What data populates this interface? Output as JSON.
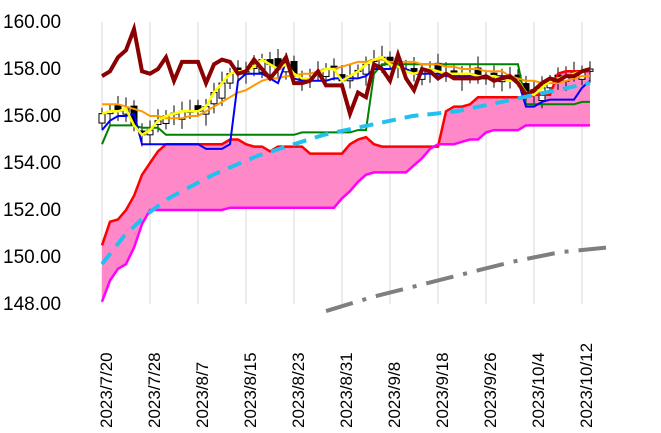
{
  "chart_data": {
    "type": "line",
    "title": "",
    "xlabel": "",
    "ylabel": "",
    "ylim": [
      148,
      160
    ],
    "y_ticks": [
      "160.00",
      "158.00",
      "156.00",
      "154.00",
      "152.00",
      "150.00",
      "148.00"
    ],
    "x_ticks": [
      "2023/7/20",
      "2023/7/28",
      "2023/8/7",
      "2023/8/15",
      "2023/8/23",
      "2023/8/31",
      "2023/9/8",
      "2023/9/18",
      "2023/9/26",
      "2023/10/4",
      "2023/10/12"
    ],
    "grid": "vertical lines at each x tick",
    "candles_count": 62,
    "series": [
      {
        "color": "#0000ff",
        "values": [
          155.4,
          155.8,
          156.0,
          156.0,
          156.1,
          154.8,
          154.8,
          154.8,
          154.8,
          154.8,
          154.8,
          154.8,
          154.8,
          154.6,
          154.6,
          154.6,
          154.8,
          157.5,
          157.8,
          157.8,
          157.8,
          157.6,
          157.4,
          158.3,
          157.6,
          157.5,
          157.5,
          157.5,
          157.5,
          157.6,
          157.6,
          157.6,
          157.6,
          157.7,
          158.0,
          158.0,
          158.0,
          158.1,
          158.0,
          157.8,
          157.8,
          157.8,
          157.8,
          157.7,
          157.7,
          157.7,
          157.7,
          157.7,
          157.7,
          157.7,
          157.7,
          157.7,
          157.5,
          156.4,
          156.4,
          156.6,
          156.7,
          156.7,
          156.7,
          156.7,
          157.2,
          157.5
        ]
      },
      {
        "color": "#008000",
        "values": [
          154.8,
          155.6,
          155.6,
          155.6,
          155.6,
          155.5,
          155.5,
          155.5,
          155.2,
          155.2,
          155.2,
          155.2,
          155.2,
          155.2,
          155.2,
          155.2,
          155.2,
          155.2,
          155.2,
          155.2,
          155.2,
          155.2,
          155.2,
          155.2,
          155.2,
          155.3,
          155.3,
          155.3,
          155.3,
          155.3,
          155.3,
          155.3,
          155.4,
          155.4,
          157.8,
          158.2,
          158.2,
          158.2,
          158.2,
          158.2,
          158.2,
          158.2,
          158.2,
          158.2,
          158.2,
          158.2,
          158.2,
          158.2,
          158.2,
          158.2,
          158.2,
          158.2,
          158.2,
          156.5,
          156.5,
          156.5,
          156.5,
          156.5,
          156.5,
          156.5,
          156.6,
          156.6
        ]
      },
      {
        "color": "#ff9900",
        "values": [
          156.5,
          156.5,
          156.5,
          156.4,
          156.3,
          156.2,
          156.0,
          156.0,
          155.9,
          155.9,
          155.9,
          156.0,
          156.0,
          156.2,
          156.4,
          156.6,
          156.8,
          157.0,
          157.1,
          157.3,
          157.5,
          157.6,
          157.6,
          157.7,
          157.7,
          157.8,
          157.8,
          157.9,
          158.0,
          158.0,
          158.1,
          158.2,
          158.3,
          158.3,
          158.4,
          158.4,
          158.3,
          158.3,
          158.3,
          158.3,
          158.2,
          158.2,
          158.2,
          158.1,
          158.1,
          158.0,
          158.0,
          158.0,
          157.9,
          157.9,
          157.9,
          157.7,
          157.6,
          157.5,
          157.5,
          157.4,
          157.4,
          157.4,
          157.5,
          157.6,
          157.7,
          157.7
        ]
      },
      {
        "color": "#ffff00",
        "values": [
          156.1,
          156.2,
          156.2,
          156.3,
          155.6,
          155.2,
          155.4,
          155.8,
          156.0,
          156.1,
          156.2,
          156.2,
          156.2,
          156.4,
          157.0,
          157.4,
          157.8,
          157.9,
          157.9,
          158.1,
          158.4,
          158.2,
          158.0,
          158.2,
          157.8,
          157.6,
          157.6,
          157.8,
          158.0,
          158.0,
          157.5,
          157.7,
          157.9,
          158.2,
          158.4,
          158.5,
          158.2,
          158.1,
          157.9,
          157.8,
          157.9,
          158.0,
          157.9,
          157.8,
          157.8,
          157.8,
          157.8,
          157.7,
          157.7,
          157.7,
          157.6,
          157.5,
          157.5,
          157.0,
          156.9,
          157.2,
          157.5,
          157.6,
          157.7,
          157.8,
          157.9,
          158.0
        ]
      },
      {
        "color": "#8b0000",
        "values": [
          157.7,
          157.9,
          158.5,
          158.8,
          159.7,
          157.9,
          157.8,
          158.0,
          158.5,
          157.5,
          158.3,
          158.3,
          158.3,
          157.4,
          158.2,
          158.4,
          158.3,
          157.8,
          157.9,
          158.4,
          158.0,
          157.6,
          158.0,
          158.5,
          157.4,
          157.4,
          157.5,
          157.9,
          157.3,
          157.3,
          157.3,
          156.1,
          157.0,
          156.8,
          158.2,
          158.0,
          157.5,
          158.6,
          157.6,
          157.1,
          158.0,
          157.9,
          157.6,
          157.8,
          157.6,
          157.6,
          157.6,
          157.6,
          157.7,
          157.5,
          157.6,
          157.7,
          157.4,
          156.9,
          157.1,
          157.4,
          157.6,
          157.5,
          157.7,
          157.7,
          157.9,
          158.0
        ]
      },
      {
        "color": "#ff0000",
        "values": [
          150.5,
          151.5,
          151.6,
          152.0,
          152.6,
          153.5,
          154.0,
          154.5,
          154.8,
          154.8,
          154.8,
          154.8,
          154.8,
          154.8,
          154.8,
          154.8,
          155.0,
          155.0,
          154.8,
          154.7,
          154.7,
          154.5,
          154.7,
          154.7,
          154.7,
          154.7,
          154.4,
          154.4,
          154.4,
          154.4,
          154.4,
          154.8,
          155.0,
          155.1,
          154.8,
          154.7,
          154.7,
          154.7,
          154.7,
          154.7,
          154.7,
          154.7,
          154.7,
          156.2,
          156.4,
          156.4,
          156.5,
          156.8,
          156.8,
          156.8,
          156.8,
          156.8,
          156.8,
          156.8,
          156.9,
          156.9,
          156.9,
          157.8,
          157.9,
          157.9,
          157.9,
          157.9
        ]
      },
      {
        "color": "#ff00ff",
        "values": [
          148.1,
          149.0,
          149.5,
          149.7,
          150.4,
          151.4,
          152.0,
          152.0,
          152.0,
          152.0,
          152.0,
          152.0,
          152.0,
          152.0,
          152.0,
          152.0,
          152.1,
          152.1,
          152.1,
          152.1,
          152.1,
          152.1,
          152.1,
          152.1,
          152.1,
          152.1,
          152.1,
          152.1,
          152.1,
          152.1,
          152.5,
          152.8,
          153.2,
          153.5,
          153.6,
          153.6,
          153.6,
          153.6,
          153.6,
          153.9,
          154.2,
          154.6,
          154.8,
          154.8,
          154.8,
          154.9,
          155.0,
          155.0,
          155.3,
          155.4,
          155.4,
          155.4,
          155.4,
          155.6,
          155.6,
          155.6,
          155.6,
          155.6,
          155.6,
          155.6,
          155.6,
          155.6
        ]
      },
      {
        "color": "#22c0ee",
        "values": [
          149.7,
          150.9,
          151.8,
          152.5,
          153.0,
          153.5,
          153.9,
          154.3,
          154.6,
          154.9,
          155.2,
          155.4,
          155.6,
          155.8,
          156.0,
          156.1,
          156.2,
          156.4,
          156.6,
          156.8,
          157.0,
          157.2,
          157.4
        ]
      },
      {
        "color": "#7f7f7f",
        "values": [
          147.7,
          148.3,
          148.8,
          149.3,
          149.8,
          150.2,
          150.4
        ]
      }
    ]
  }
}
